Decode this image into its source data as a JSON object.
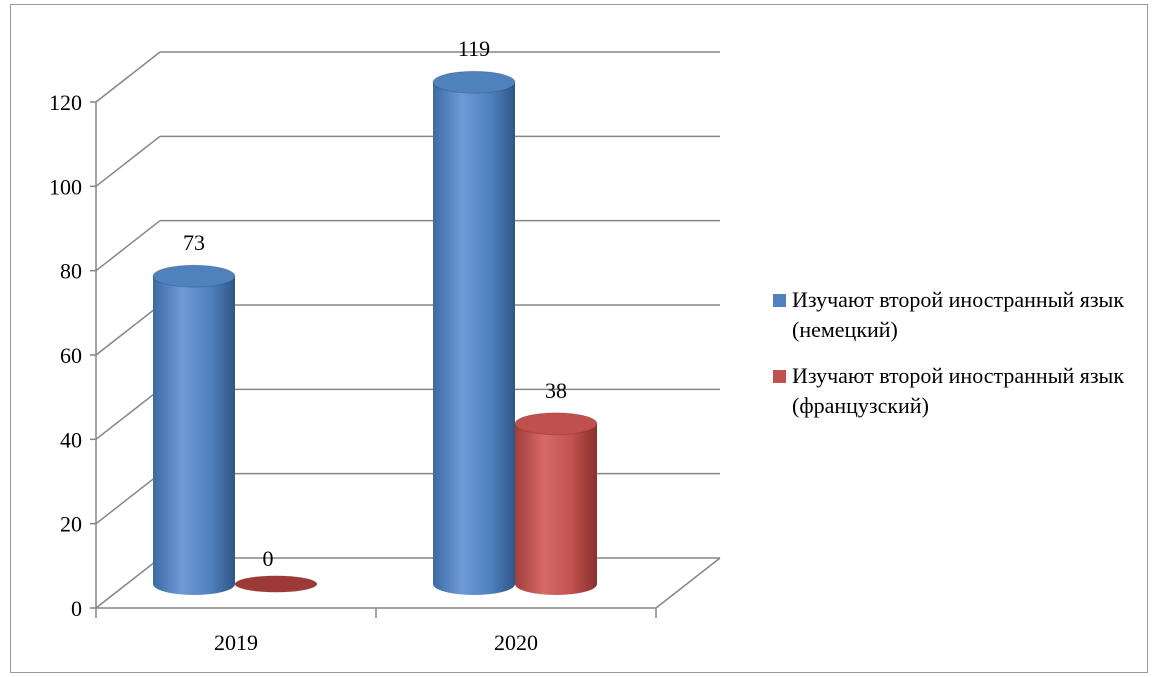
{
  "chart_data": {
    "type": "bar",
    "categories": [
      "2019",
      "2020"
    ],
    "series": [
      {
        "name": "Изучают второй иностранный язык (немецкий)",
        "values": [
          73,
          119
        ],
        "color": "#4f81bd"
      },
      {
        "name": "Изучают второй иностранный язык (французский)",
        "values": [
          0,
          38
        ],
        "color": "#c0504d"
      }
    ],
    "ylim": [
      0,
      120
    ],
    "yticks": [
      0,
      20,
      40,
      60,
      80,
      100,
      120
    ],
    "data_labels": [
      [
        "73",
        "119"
      ],
      [
        "0",
        "38"
      ]
    ],
    "grid": true,
    "legend_position": "right",
    "style": "3d-cylinder"
  }
}
